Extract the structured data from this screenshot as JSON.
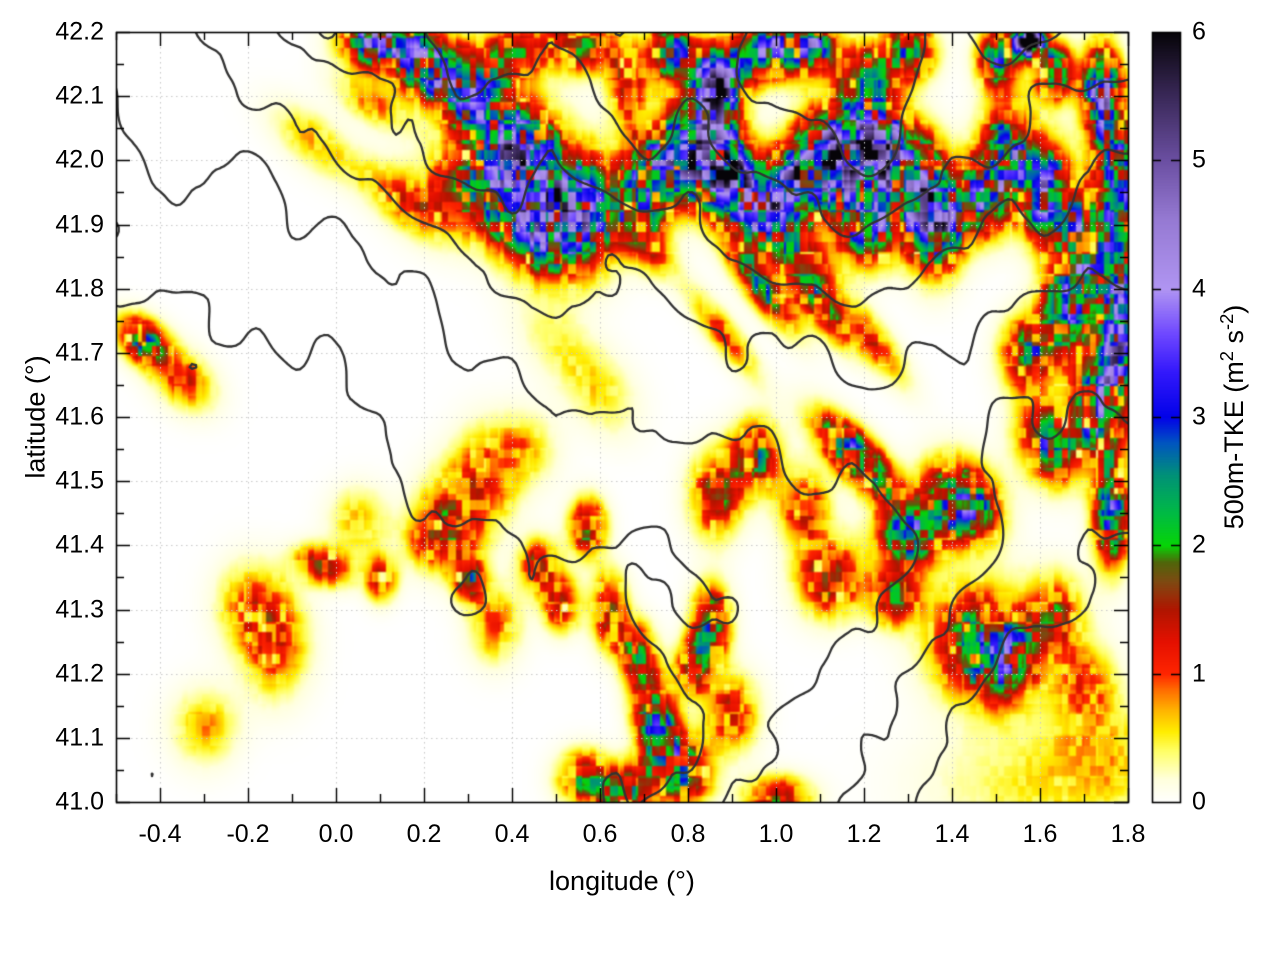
{
  "chart_data": {
    "type": "heatmap",
    "title": "",
    "xlabel": "longitude (°)",
    "ylabel": "latitude (°)",
    "xlim": [
      -0.5,
      1.8
    ],
    "ylim": [
      41.0,
      42.2
    ],
    "grid": true,
    "x_tick_values": [
      -0.4,
      -0.2,
      0.0,
      0.2,
      0.4,
      0.6,
      0.8,
      1.0,
      1.2,
      1.4,
      1.6,
      1.8
    ],
    "x_tick_labels": [
      "-0.4",
      "-0.2",
      "0.0",
      "0.2",
      "0.4",
      "0.6",
      "0.8",
      "1.0",
      "1.2",
      "1.4",
      "1.6",
      "1.8"
    ],
    "x_minor_step": 0.1,
    "y_tick_values": [
      41.0,
      41.1,
      41.2,
      41.3,
      41.4,
      41.5,
      41.6,
      41.7,
      41.8,
      41.9,
      42.0,
      42.1,
      42.2
    ],
    "y_tick_labels": [
      "41.0",
      "41.1",
      "41.2",
      "41.3",
      "41.4",
      "41.5",
      "41.6",
      "41.7",
      "41.8",
      "41.9",
      "42.0",
      "42.1",
      "42.2"
    ],
    "y_minor_step": 0.05,
    "grid_color": "#c9c9c9",
    "colorbar": {
      "range": [
        0,
        6
      ],
      "ticks": [
        0,
        1,
        2,
        3,
        4,
        5,
        6
      ],
      "tick_labels": [
        "0",
        "1",
        "2",
        "3",
        "4",
        "5",
        "6"
      ],
      "label_parts": [
        {
          "t": "500m-TKE (m"
        },
        {
          "t": "2",
          "sup": true
        },
        {
          "t": " s"
        },
        {
          "t": "-2",
          "sup": true
        },
        {
          "t": ")"
        }
      ],
      "palette_stops": [
        [
          0.0,
          "#ffffff"
        ],
        [
          0.18,
          "#ffffdd"
        ],
        [
          0.4,
          "#ffff66"
        ],
        [
          0.55,
          "#ffed00"
        ],
        [
          0.72,
          "#ffb300"
        ],
        [
          0.88,
          "#ff6a00"
        ],
        [
          1.0,
          "#ff2500"
        ],
        [
          1.25,
          "#e51000"
        ],
        [
          1.5,
          "#b01500"
        ],
        [
          1.72,
          "#7e4a12"
        ],
        [
          1.87,
          "#50650a"
        ],
        [
          2.0,
          "#06d506"
        ],
        [
          2.25,
          "#00bb44"
        ],
        [
          2.55,
          "#009178"
        ],
        [
          2.8,
          "#0055c0"
        ],
        [
          3.0,
          "#0202e8"
        ],
        [
          3.35,
          "#3318fb"
        ],
        [
          3.65,
          "#6f48ff"
        ],
        [
          4.0,
          "#b095f2"
        ],
        [
          4.55,
          "#9579d2"
        ],
        [
          5.0,
          "#6b4fa2"
        ],
        [
          5.55,
          "#352551"
        ],
        [
          6.0,
          "#060408"
        ]
      ]
    },
    "field_blobs": [
      [
        0.1,
        42.19,
        3.2,
        0.055,
        0.03,
        0
      ],
      [
        0.2,
        42.15,
        2.4,
        0.045,
        0.035,
        0
      ],
      [
        0.3,
        42.11,
        2.8,
        0.05,
        0.04,
        0
      ],
      [
        0.4,
        42.17,
        1.4,
        0.045,
        0.03,
        0
      ],
      [
        0.55,
        42.18,
        1.6,
        0.055,
        0.03,
        0
      ],
      [
        0.66,
        42.12,
        1.3,
        0.03,
        0.045,
        0
      ],
      [
        0.76,
        42.17,
        2.2,
        0.035,
        0.03,
        0
      ],
      [
        0.86,
        42.11,
        3.8,
        0.04,
        0.045,
        0
      ],
      [
        0.96,
        42.17,
        2.4,
        0.04,
        0.03,
        0
      ],
      [
        1.06,
        42.18,
        3.2,
        0.045,
        0.03,
        0
      ],
      [
        1.2,
        42.13,
        2.0,
        0.04,
        0.035,
        0
      ],
      [
        1.3,
        42.17,
        2.0,
        0.04,
        0.03,
        0
      ],
      [
        1.57,
        42.19,
        6.5,
        0.022,
        0.018,
        0
      ],
      [
        1.5,
        42.16,
        2.3,
        0.03,
        0.03,
        0
      ],
      [
        1.63,
        42.14,
        2.2,
        0.03,
        0.03,
        0
      ],
      [
        1.74,
        42.1,
        3.4,
        0.03,
        0.05,
        0
      ],
      [
        1.78,
        41.97,
        3.0,
        0.028,
        0.06,
        0
      ],
      [
        0.15,
        41.94,
        0.9,
        0.07,
        0.028,
        -25
      ],
      [
        0.3,
        41.96,
        1.2,
        0.08,
        0.05,
        0
      ],
      [
        0.4,
        42.02,
        3.0,
        0.06,
        0.05,
        0
      ],
      [
        0.5,
        41.95,
        2.6,
        0.06,
        0.055,
        0
      ],
      [
        0.45,
        41.89,
        2.1,
        0.08,
        0.045,
        -20
      ],
      [
        0.58,
        41.92,
        1.9,
        0.05,
        0.05,
        0
      ],
      [
        0.7,
        41.96,
        2.3,
        0.04,
        0.05,
        0
      ],
      [
        0.79,
        42.01,
        3.3,
        0.05,
        0.048,
        0
      ],
      [
        0.88,
        41.98,
        4.4,
        0.042,
        0.04,
        0
      ],
      [
        0.96,
        41.92,
        2.6,
        0.05,
        0.04,
        0
      ],
      [
        1.05,
        41.97,
        3.1,
        0.05,
        0.04,
        0
      ],
      [
        1.13,
        42.01,
        4.2,
        0.05,
        0.048,
        0
      ],
      [
        1.23,
        42.03,
        3.6,
        0.048,
        0.04,
        0
      ],
      [
        1.31,
        41.97,
        2.9,
        0.05,
        0.048,
        0
      ],
      [
        1.21,
        41.9,
        2.6,
        0.048,
        0.04,
        0
      ],
      [
        1.36,
        41.9,
        3.0,
        0.04,
        0.05,
        0
      ],
      [
        1.46,
        41.94,
        2.1,
        0.04,
        0.04,
        0
      ],
      [
        1.52,
        42.01,
        2.5,
        0.04,
        0.055,
        0
      ],
      [
        1.61,
        41.95,
        2.8,
        0.038,
        0.05,
        0
      ],
      [
        1.7,
        41.87,
        2.6,
        0.04,
        0.06,
        0
      ],
      [
        0.97,
        41.8,
        1.7,
        0.065,
        0.022,
        -40
      ],
      [
        1.1,
        41.77,
        1.4,
        0.06,
        0.02,
        -40
      ],
      [
        0.88,
        41.73,
        0.9,
        0.07,
        0.02,
        -40
      ],
      [
        1.22,
        41.72,
        1.0,
        0.065,
        0.022,
        -40
      ],
      [
        1.05,
        41.85,
        1.5,
        0.06,
        0.03,
        -30
      ],
      [
        0.7,
        41.87,
        1.0,
        0.05,
        0.025,
        -30
      ],
      [
        1.78,
        41.74,
        3.4,
        0.03,
        0.08,
        0
      ],
      [
        1.66,
        41.77,
        2.2,
        0.04,
        0.05,
        0
      ],
      [
        1.57,
        41.7,
        1.8,
        0.04,
        0.04,
        0
      ],
      [
        1.73,
        41.62,
        2.9,
        0.038,
        0.05,
        0
      ],
      [
        1.62,
        41.56,
        2.0,
        0.05,
        0.04,
        -30
      ],
      [
        1.76,
        41.45,
        2.4,
        0.028,
        0.055,
        0
      ],
      [
        1.18,
        41.54,
        2.6,
        0.07,
        0.026,
        -32
      ],
      [
        1.42,
        41.47,
        2.8,
        0.055,
        0.04,
        -20
      ],
      [
        1.3,
        41.42,
        2.1,
        0.05,
        0.038,
        0
      ],
      [
        1.06,
        41.46,
        1.2,
        0.04,
        0.04,
        0
      ],
      [
        0.95,
        41.54,
        1.7,
        0.038,
        0.038,
        0
      ],
      [
        0.86,
        41.48,
        1.4,
        0.04,
        0.045,
        0
      ],
      [
        1.12,
        41.35,
        1.6,
        0.05,
        0.04,
        0
      ],
      [
        1.27,
        41.32,
        1.6,
        0.04,
        0.03,
        0
      ],
      [
        1.46,
        41.25,
        1.8,
        0.075,
        0.06,
        0
      ],
      [
        1.52,
        41.22,
        1.4,
        0.05,
        0.045,
        0
      ],
      [
        1.63,
        41.29,
        1.3,
        0.045,
        0.045,
        0
      ],
      [
        1.7,
        41.18,
        1.0,
        0.05,
        0.045,
        0
      ],
      [
        1.6,
        41.03,
        0.5,
        0.17,
        0.06,
        0
      ],
      [
        1.76,
        41.08,
        0.45,
        0.1,
        0.05,
        0
      ],
      [
        0.73,
        41.11,
        2.4,
        0.03,
        0.04,
        0
      ],
      [
        0.79,
        41.05,
        2.2,
        0.04,
        0.035,
        0
      ],
      [
        0.85,
        41.28,
        1.9,
        0.03,
        0.04,
        0
      ],
      [
        0.81,
        41.21,
        1.5,
        0.028,
        0.03,
        0
      ],
      [
        0.66,
        41.02,
        1.8,
        0.05,
        0.028,
        0
      ],
      [
        0.56,
        41.04,
        1.4,
        0.04,
        0.028,
        0
      ],
      [
        0.9,
        41.14,
        1.2,
        0.04,
        0.04,
        0
      ],
      [
        1.0,
        41.01,
        1.5,
        0.05,
        0.022,
        0
      ],
      [
        0.7,
        41.18,
        1.0,
        0.03,
        0.04,
        0
      ],
      [
        0.57,
        41.43,
        1.8,
        0.028,
        0.03,
        0
      ],
      [
        0.46,
        41.37,
        1.4,
        0.03,
        0.028,
        0
      ],
      [
        0.51,
        41.31,
        1.5,
        0.028,
        0.028,
        0
      ],
      [
        0.62,
        41.3,
        1.6,
        0.028,
        0.038,
        0
      ],
      [
        0.68,
        41.24,
        1.4,
        0.028,
        0.03,
        0
      ],
      [
        0.3,
        41.35,
        1.6,
        0.024,
        0.024,
        0
      ],
      [
        0.36,
        41.28,
        0.9,
        0.04,
        0.04,
        0
      ],
      [
        0.22,
        41.41,
        0.8,
        0.045,
        0.03,
        0
      ],
      [
        0.33,
        41.5,
        1.0,
        0.05,
        0.055,
        0
      ],
      [
        0.25,
        41.44,
        1.1,
        0.05,
        0.05,
        0
      ],
      [
        0.42,
        41.55,
        0.7,
        0.05,
        0.04,
        0
      ],
      [
        -0.44,
        41.72,
        1.9,
        0.042,
        0.024,
        -20
      ],
      [
        -0.35,
        41.66,
        1.0,
        0.05,
        0.03,
        -20
      ],
      [
        -0.14,
        41.25,
        1.1,
        0.05,
        0.055,
        0
      ],
      [
        -0.2,
        41.31,
        0.8,
        0.05,
        0.045,
        0
      ],
      [
        -0.03,
        41.37,
        1.6,
        0.042,
        0.02,
        -10
      ],
      [
        0.1,
        41.35,
        1.4,
        0.024,
        0.024,
        0
      ],
      [
        -0.3,
        41.12,
        0.7,
        0.05,
        0.04,
        0
      ],
      [
        0.05,
        41.44,
        0.7,
        0.045,
        0.035,
        0
      ],
      [
        -0.05,
        42.03,
        0.7,
        0.07,
        0.028,
        -25
      ],
      [
        0.08,
        42.09,
        0.75,
        0.06,
        0.022,
        -20
      ],
      [
        0.6,
        41.64,
        0.5,
        0.06,
        0.04,
        -30
      ],
      [
        0.5,
        41.72,
        0.4,
        0.07,
        0.04,
        -30
      ]
    ],
    "speckle": {
      "cell1_deg": 0.016,
      "cell2_deg": 0.034,
      "strength": 0.85
    },
    "terrain_contours": {
      "lon_start": -0.5,
      "lat_start": 42.2,
      "dlon": 0.1,
      "dlat": -0.1,
      "levels": [
        3,
        5,
        7,
        9,
        11,
        13
      ],
      "color": "#333333",
      "width": 2.3,
      "wiggle": {
        "scale1": 0.09,
        "amp1": 0.55,
        "scale2": 0.045,
        "amp2": 0.25
      },
      "values": [
        [
          6,
          7,
          7,
          8,
          9,
          9,
          10,
          11,
          12,
          12,
          11,
          12,
          13,
          12,
          13,
          14,
          14,
          15,
          14,
          13,
          14,
          13,
          12,
          12
        ],
        [
          5,
          6,
          6,
          7,
          7,
          8,
          9,
          10,
          11,
          11,
          10,
          11,
          12,
          11,
          12,
          13,
          13,
          14,
          13,
          12,
          12,
          11,
          11,
          10
        ],
        [
          4,
          5,
          5,
          5,
          6,
          7,
          8,
          9,
          10,
          10,
          9,
          10,
          11,
          10,
          11,
          12,
          12,
          13,
          12,
          11,
          11,
          10,
          9,
          9
        ],
        [
          3,
          4,
          4,
          4,
          5,
          5,
          6,
          7,
          8,
          9,
          8,
          8,
          9,
          9,
          10,
          10,
          11,
          11,
          10,
          10,
          9,
          9,
          8,
          8
        ],
        [
          3,
          3,
          3,
          4,
          4,
          4,
          5,
          5,
          6,
          7,
          7,
          7,
          7,
          8,
          8,
          9,
          9,
          9,
          9,
          8,
          8,
          7,
          7,
          7
        ],
        [
          2,
          2,
          3,
          3,
          3,
          3,
          4,
          4,
          5,
          5,
          6,
          6,
          6,
          6,
          7,
          7,
          7,
          8,
          7,
          7,
          6,
          6,
          6,
          6
        ],
        [
          2,
          2,
          2,
          2,
          2,
          3,
          3,
          4,
          4,
          4,
          5,
          5,
          5,
          5,
          5,
          6,
          6,
          6,
          6,
          6,
          5,
          5,
          5,
          5
        ],
        [
          1,
          1,
          2,
          2,
          2,
          2,
          3,
          3,
          4,
          4,
          4,
          4,
          4,
          4,
          4,
          5,
          5,
          5,
          6,
          5,
          5,
          4,
          4,
          4
        ],
        [
          1,
          1,
          1,
          2,
          2,
          2,
          2,
          3,
          3,
          3,
          3,
          3,
          3,
          3,
          4,
          4,
          4,
          5,
          5,
          6,
          5,
          4,
          3,
          3
        ],
        [
          1,
          1,
          1,
          1,
          2,
          2,
          2,
          2,
          3,
          3,
          2,
          2,
          3,
          3,
          3,
          4,
          4,
          5,
          6,
          5,
          4,
          3,
          3,
          2
        ],
        [
          2,
          2,
          2,
          1,
          1,
          1,
          2,
          2,
          2,
          2,
          2,
          2,
          2,
          3,
          3,
          4,
          5,
          6,
          5,
          4,
          3,
          2,
          2,
          2
        ],
        [
          2,
          3,
          2,
          2,
          1,
          1,
          1,
          1,
          2,
          2,
          2,
          2,
          3,
          3,
          4,
          5,
          6,
          5,
          4,
          3,
          2,
          2,
          1,
          1
        ],
        [
          3,
          3,
          3,
          2,
          2,
          1,
          1,
          1,
          1,
          2,
          2,
          3,
          3,
          4,
          5,
          6,
          5,
          4,
          3,
          2,
          2,
          1,
          1,
          1
        ]
      ]
    }
  }
}
